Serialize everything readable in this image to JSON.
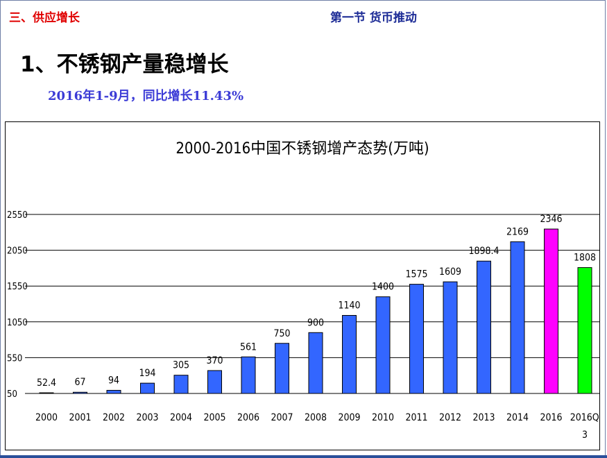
{
  "header": {
    "section": "三、供应增长",
    "chapter": "第一节  货币推动"
  },
  "main": {
    "heading": "1、不锈钢产量稳增长",
    "subheading": "2016年1-9月，同比增长11.43%"
  },
  "chart_data": {
    "type": "bar",
    "title": "2000-2016中国不锈钢增产态势(万吨)",
    "categories": [
      "2000",
      "2001",
      "2002",
      "2003",
      "2004",
      "2005",
      "2006",
      "2007",
      "2008",
      "2009",
      "2010",
      "2011",
      "2012",
      "2013",
      "2014",
      "2016",
      "2016Q1-3"
    ],
    "values": [
      52.4,
      67,
      94,
      194,
      305,
      370,
      561,
      750,
      900,
      1140,
      1400,
      1575,
      1609,
      1898.4,
      2169,
      2346,
      1808
    ],
    "value_labels": [
      "52.4",
      "67",
      "94",
      "194",
      "305",
      "370",
      "561",
      "750",
      "900",
      "1140",
      "1400",
      "1575",
      "1609",
      "1898.4",
      "2169",
      "2346",
      "1808"
    ],
    "category_labels": [
      [
        "2000"
      ],
      [
        "2001"
      ],
      [
        "2002"
      ],
      [
        "2003"
      ],
      [
        "2004"
      ],
      [
        "2005"
      ],
      [
        "2006"
      ],
      [
        "2007"
      ],
      [
        "2008"
      ],
      [
        "2009"
      ],
      [
        "2010"
      ],
      [
        "2011"
      ],
      [
        "2012"
      ],
      [
        "2013"
      ],
      [
        "2014"
      ],
      [
        "2016"
      ],
      [
        "2016Q1-",
        "3"
      ]
    ],
    "bar_colors": [
      "#3366ff",
      "#3366ff",
      "#3366ff",
      "#3366ff",
      "#3366ff",
      "#3366ff",
      "#3366ff",
      "#3366ff",
      "#3366ff",
      "#3366ff",
      "#3366ff",
      "#3366ff",
      "#3366ff",
      "#3366ff",
      "#3366ff",
      "#ff00ff",
      "#00ff00"
    ],
    "yticks": [
      50,
      550,
      1050,
      1550,
      2050,
      2550
    ],
    "ytick_labels": [
      "50",
      "550",
      "1050",
      "1550",
      "2050",
      "2550"
    ],
    "ylim": [
      50,
      2550
    ],
    "grid": true
  }
}
